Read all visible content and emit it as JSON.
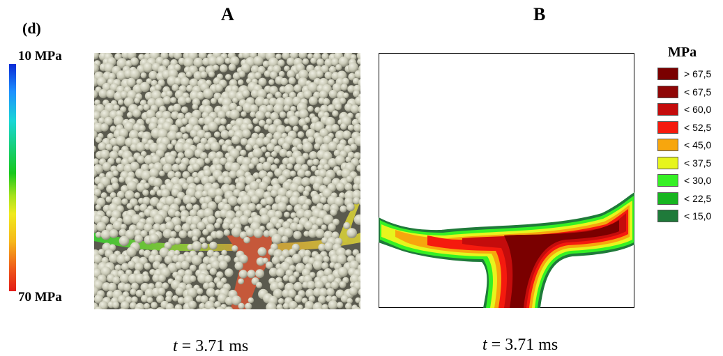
{
  "figure_label": "(d)",
  "panels": [
    {
      "letter": "A",
      "time_label": {
        "prefix": "t",
        "value": " = 3.71 ms"
      }
    },
    {
      "letter": "B",
      "time_label": {
        "prefix": "t",
        "value": " = 3.71 ms"
      }
    }
  ],
  "colorbar": {
    "top_label": "10 MPa",
    "bottom_label": "70 MPa"
  },
  "legend": {
    "title": "MPa",
    "items": [
      {
        "label": "> 67,5",
        "color": "#7a0000"
      },
      {
        "label": "< 67,5",
        "color": "#8f0606"
      },
      {
        "label": "< 60,0",
        "color": "#c40c0c"
      },
      {
        "label": "< 52,5",
        "color": "#f51a0e"
      },
      {
        "label": "< 45,0",
        "color": "#f7a60d"
      },
      {
        "label": "< 37,5",
        "color": "#e7f51d"
      },
      {
        "label": "< 30,0",
        "color": "#35f025"
      },
      {
        "label": "< 22,5",
        "color": "#17b520"
      },
      {
        "label": "< 15,0",
        "color": "#1f7a3a"
      }
    ]
  }
}
